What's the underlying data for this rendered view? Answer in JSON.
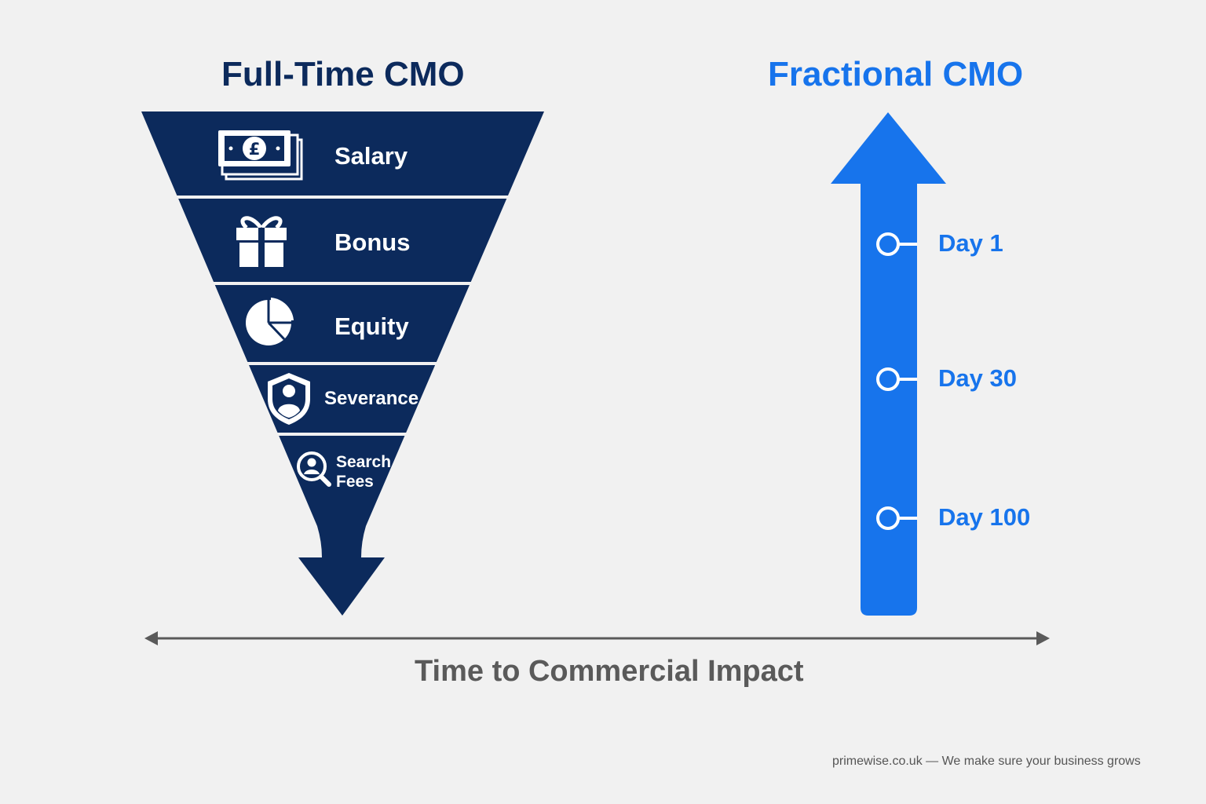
{
  "full_time": {
    "title": "Full-Time CMO",
    "layers": [
      {
        "label": "Salary",
        "icon": "banknotes-pound-icon"
      },
      {
        "label": "Bonus",
        "icon": "gift-icon"
      },
      {
        "label": "Equity",
        "icon": "pie-chart-icon"
      },
      {
        "label": "Severance",
        "icon": "shield-person-icon"
      },
      {
        "label": "Search Fees",
        "icon": "search-person-icon"
      }
    ]
  },
  "fractional": {
    "title": "Fractional CMO",
    "milestones": [
      {
        "label": "Day 1"
      },
      {
        "label": "Day 30"
      },
      {
        "label": "Day 100"
      }
    ]
  },
  "axis": {
    "label": "Time to Commercial Impact"
  },
  "footer": {
    "text": "primewise.co.uk — We make sure your business grows"
  },
  "colors": {
    "navy": "#0c2a5c",
    "blue": "#1774ec",
    "background": "#f1f1f1",
    "axis": "#5a5a5a"
  }
}
